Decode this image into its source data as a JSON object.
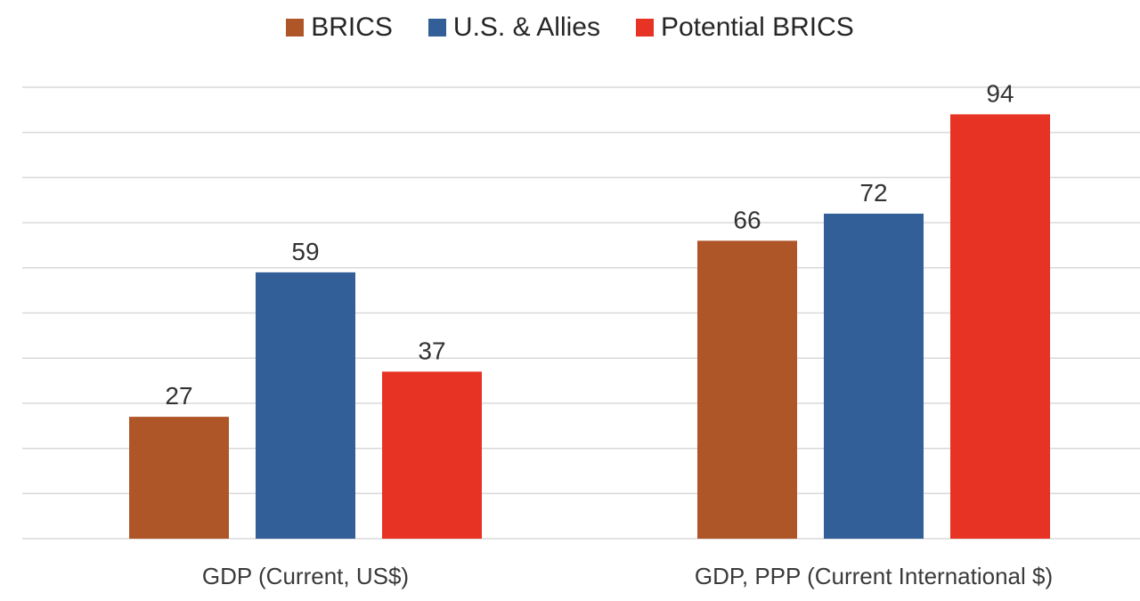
{
  "chart_data": {
    "type": "bar",
    "categories": [
      "GDP (Current, US$)",
      "GDP, PPP (Current International $)"
    ],
    "series": [
      {
        "name": "BRICS",
        "color": "#ae5628",
        "values": [
          27,
          66
        ]
      },
      {
        "name": "U.S. & Allies",
        "color": "#335f98",
        "values": [
          59,
          72
        ]
      },
      {
        "name": "Potential BRICS",
        "color": "#e63323",
        "values": [
          37,
          94
        ]
      }
    ],
    "title": "",
    "xlabel": "",
    "ylabel": "",
    "ylim": [
      0,
      100
    ],
    "grid": true,
    "legend": "top-center",
    "data_labels": true
  }
}
